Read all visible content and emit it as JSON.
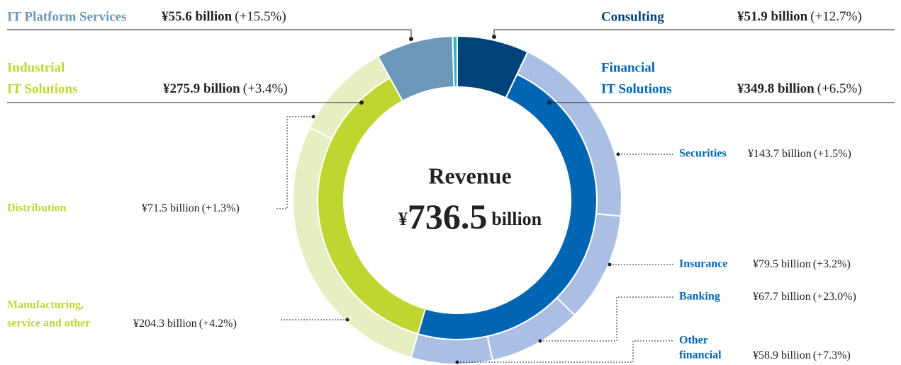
{
  "chart_data": {
    "type": "donut",
    "center": {
      "title": "Revenue",
      "currency": "¥",
      "total": 736.5,
      "unit": "billion"
    },
    "segments": [
      {
        "name": [
          "Consulting"
        ],
        "value": 51.9,
        "value_label": "¥51.9 billion",
        "change_label": "(+12.7%)",
        "color": "#00437a"
      },
      {
        "name": [
          "Financial",
          "IT Solutions"
        ],
        "value": 349.8,
        "value_label": "¥349.8 billion",
        "change_label": "(+6.5%)",
        "color": "#0066b3",
        "child_color": "#abbfe4",
        "children": [
          {
            "name": [
              "Securities"
            ],
            "value": 143.7,
            "value_label": "¥143.7 billion",
            "change_label": "(+1.5%)"
          },
          {
            "name": [
              "Insurance"
            ],
            "value": 79.5,
            "value_label": "¥79.5 billion",
            "change_label": "(+3.2%)"
          },
          {
            "name": [
              "Banking"
            ],
            "value": 67.7,
            "value_label": "¥67.7 billion",
            "change_label": "(+23.0%)"
          },
          {
            "name": [
              "Other",
              "financial"
            ],
            "value": 58.9,
            "value_label": "¥58.9 billion",
            "change_label": "(+7.3%)"
          }
        ]
      },
      {
        "name": [
          "Industrial",
          "IT Solutions"
        ],
        "value": 275.9,
        "value_label": "¥275.9 billion",
        "change_label": "(+3.4%)",
        "color": "#bfd630",
        "child_color": "#e5efc2",
        "children": [
          {
            "name": [
              "Manufacturing,",
              "service and other"
            ],
            "value": 204.3,
            "value_label": "¥204.3 billion",
            "change_label": "(+4.2%)"
          },
          {
            "name": [
              "Distribution"
            ],
            "value": 71.5,
            "value_label": "¥71.5 billion",
            "change_label": "(+1.3%)"
          }
        ]
      },
      {
        "name": [
          "IT Platform Services"
        ],
        "value": 55.6,
        "value_label": "¥55.6 billion",
        "change_label": "(+15.5%)",
        "color": "#6b97b8"
      },
      {
        "name": null,
        "value": 3.3,
        "color": "#2fb5b5"
      }
    ]
  }
}
